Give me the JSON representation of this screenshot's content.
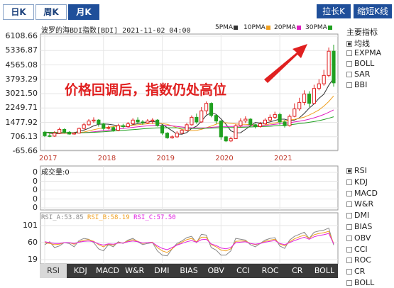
{
  "period_tabs": [
    {
      "label": "日K",
      "active": false
    },
    {
      "label": "周K",
      "active": false
    },
    {
      "label": "月K",
      "active": true
    }
  ],
  "buttons": {
    "stretch": "拉长K线",
    "shrink": "缩短K线"
  },
  "header": {
    "title": "波罗的海BDI指数[BDI] 2021-11-02 04:00"
  },
  "ma_legend": [
    {
      "label": "5PMA",
      "color": "#333333"
    },
    {
      "label": "10PMA",
      "color": "#f0a020"
    },
    {
      "label": "20PMA",
      "color": "#e020c0"
    },
    {
      "label": "30PMA",
      "color": "#20a020"
    }
  ],
  "side_panel": {
    "title": "主要指标",
    "items": [
      {
        "label": "均线",
        "checked": true
      },
      {
        "label": "EXPMA",
        "checked": false
      },
      {
        "label": "BOLL",
        "checked": false
      },
      {
        "label": "SAR",
        "checked": false
      },
      {
        "label": "BBI",
        "checked": false
      }
    ]
  },
  "sub_indicators": [
    {
      "label": "RSI",
      "checked": true
    },
    {
      "label": "KDJ",
      "checked": false
    },
    {
      "label": "MACD",
      "checked": false
    },
    {
      "label": "W&R",
      "checked": false
    },
    {
      "label": "DMI",
      "checked": false
    },
    {
      "label": "BIAS",
      "checked": false
    },
    {
      "label": "OBV",
      "checked": false
    },
    {
      "label": "CCI",
      "checked": false
    },
    {
      "label": "ROC",
      "checked": false
    },
    {
      "label": "CR",
      "checked": false
    },
    {
      "label": "BOLL",
      "checked": false
    }
  ],
  "annotation": "价格回调后，指数仍处高位",
  "volume": {
    "label": "成交量:0",
    "ticks": [
      "0",
      "0",
      "0",
      "0",
      "0"
    ]
  },
  "rsi": {
    "a": "RSI_A:53.85",
    "b": "RSI_B:58.19",
    "c": "RSI_C:57.50",
    "ticks": [
      "101",
      "60",
      "19"
    ]
  },
  "bottom_tabs": [
    {
      "label": "RSI",
      "active": true
    },
    {
      "label": "KDJ",
      "active": false
    },
    {
      "label": "MACD",
      "active": false
    },
    {
      "label": "W&R",
      "active": false
    },
    {
      "label": "DMI",
      "active": false
    },
    {
      "label": "BIAS",
      "active": false
    },
    {
      "label": "OBV",
      "active": false
    },
    {
      "label": "CCI",
      "active": false
    },
    {
      "label": "ROC",
      "active": false
    },
    {
      "label": "CR",
      "active": false
    },
    {
      "label": "BOLL",
      "active": false
    }
  ],
  "colors": {
    "up": "#e02020",
    "down": "#20a020",
    "rsi_a": "#888888",
    "rsi_b": "#f0a020",
    "rsi_c": "#e020e0"
  },
  "chart_data": {
    "type": "candlestick",
    "y_ticks": [
      "6108.66",
      "5336.87",
      "4565.08",
      "3793.29",
      "3021.50",
      "2249.71",
      "1477.92",
      "706.13",
      "-65.66"
    ],
    "ylim": [
      -65.66,
      6108.66
    ],
    "x_ticks": [
      "2017",
      "2018",
      "2019",
      "2020",
      "2021"
    ],
    "x_tick_index": [
      0,
      12,
      24,
      36,
      48
    ],
    "candles": [
      [
        950,
        760,
        1020,
        690
      ],
      [
        760,
        740,
        900,
        680
      ],
      [
        740,
        900,
        1000,
        700
      ],
      [
        900,
        1100,
        1200,
        850
      ],
      [
        1100,
        950,
        1150,
        880
      ],
      [
        950,
        850,
        1000,
        820
      ],
      [
        850,
        900,
        950,
        820
      ],
      [
        900,
        1150,
        1200,
        880
      ],
      [
        1150,
        1350,
        1450,
        1100
      ],
      [
        1350,
        1550,
        1650,
        1300
      ],
      [
        1550,
        1600,
        1750,
        1450
      ],
      [
        1600,
        1400,
        1650,
        1250
      ],
      [
        1400,
        1150,
        1450,
        1050
      ],
      [
        1150,
        1200,
        1300,
        1100
      ],
      [
        1200,
        1050,
        1250,
        980
      ],
      [
        1050,
        1300,
        1400,
        1000
      ],
      [
        1300,
        1250,
        1400,
        1150
      ],
      [
        1250,
        1400,
        1500,
        1200
      ],
      [
        1400,
        1600,
        1700,
        1350
      ],
      [
        1600,
        1500,
        1750,
        1400
      ],
      [
        1500,
        1450,
        1600,
        1350
      ],
      [
        1450,
        1550,
        1650,
        1400
      ],
      [
        1550,
        1600,
        1700,
        1400
      ],
      [
        1600,
        1300,
        1650,
        1250
      ],
      [
        1300,
        900,
        1350,
        800
      ],
      [
        900,
        650,
        950,
        600
      ],
      [
        650,
        700,
        780,
        600
      ],
      [
        700,
        900,
        1000,
        650
      ],
      [
        900,
        1050,
        1100,
        850
      ],
      [
        1050,
        1350,
        1450,
        1000
      ],
      [
        1350,
        1750,
        1850,
        1300
      ],
      [
        1750,
        1500,
        1950,
        1400
      ],
      [
        1500,
        2100,
        2300,
        1450
      ],
      [
        2100,
        2500,
        2600,
        1900
      ],
      [
        2500,
        1850,
        2550,
        1750
      ],
      [
        1850,
        1550,
        1900,
        1400
      ],
      [
        1550,
        700,
        1600,
        550
      ],
      [
        700,
        480,
        750,
        420
      ],
      [
        480,
        600,
        700,
        420
      ],
      [
        600,
        1300,
        1400,
        580
      ],
      [
        1300,
        1550,
        1700,
        1200
      ],
      [
        1550,
        1650,
        1800,
        1450
      ],
      [
        1650,
        1350,
        1700,
        1250
      ],
      [
        1350,
        1250,
        1400,
        1150
      ],
      [
        1250,
        1400,
        1500,
        1200
      ],
      [
        1400,
        1600,
        1700,
        1350
      ],
      [
        1600,
        1750,
        1900,
        1550
      ],
      [
        1750,
        1900,
        2050,
        1650
      ],
      [
        1900,
        1500,
        2000,
        1350
      ],
      [
        1500,
        1300,
        1600,
        1200
      ],
      [
        1300,
        1800,
        1900,
        1250
      ],
      [
        1800,
        2200,
        2500,
        1750
      ],
      [
        2200,
        2550,
        2800,
        2100
      ],
      [
        2550,
        3000,
        3200,
        2400
      ],
      [
        3000,
        2500,
        3150,
        2300
      ],
      [
        2500,
        3300,
        3500,
        2450
      ],
      [
        3300,
        3550,
        3800,
        3200
      ],
      [
        3550,
        4000,
        4300,
        3450
      ],
      [
        4000,
        5300,
        5500,
        3900
      ],
      [
        5300,
        3600,
        5650,
        3400
      ]
    ],
    "ma_series": [
      {
        "name": "5PMA",
        "values": [
          950,
          900,
          870,
          880,
          890,
          910,
          930,
          990,
          1060,
          1160,
          1290,
          1370,
          1390,
          1380,
          1340,
          1300,
          1270,
          1260,
          1360,
          1410,
          1450,
          1500,
          1530,
          1490,
          1370,
          1200,
          1030,
          850,
          840,
          930,
          1150,
          1270,
          1540,
          1850,
          2000,
          1910,
          1670,
          1380,
          1030,
          910,
          920,
          1100,
          1290,
          1470,
          1440,
          1450,
          1500,
          1580,
          1650,
          1650,
          1570,
          1600,
          1720,
          1960,
          2240,
          2470,
          2770,
          2990,
          3470,
          3850
        ]
      },
      {
        "name": "10PMA",
        "values": [
          950,
          930,
          910,
          900,
          890,
          890,
          900,
          930,
          960,
          1020,
          1080,
          1140,
          1180,
          1220,
          1250,
          1270,
          1280,
          1290,
          1320,
          1350,
          1380,
          1400,
          1420,
          1420,
          1410,
          1370,
          1290,
          1190,
          1100,
          1040,
          1030,
          1050,
          1100,
          1190,
          1280,
          1380,
          1450,
          1460,
          1420,
          1390,
          1380,
          1370,
          1350,
          1330,
          1320,
          1340,
          1400,
          1440,
          1510,
          1560,
          1600,
          1640,
          1700,
          1760,
          1870,
          2000,
          2150,
          2350,
          2600,
          2900
        ]
      },
      {
        "name": "20PMA",
        "values": [
          950,
          940,
          930,
          920,
          915,
          910,
          910,
          915,
          925,
          945,
          970,
          1000,
          1030,
          1060,
          1090,
          1120,
          1150,
          1180,
          1210,
          1240,
          1270,
          1290,
          1310,
          1320,
          1320,
          1310,
          1290,
          1260,
          1230,
          1200,
          1190,
          1180,
          1180,
          1190,
          1210,
          1230,
          1250,
          1260,
          1260,
          1260,
          1270,
          1280,
          1290,
          1300,
          1310,
          1320,
          1340,
          1370,
          1400,
          1430,
          1460,
          1500,
          1540,
          1590,
          1650,
          1720,
          1800,
          1900,
          2020,
          2150
        ]
      },
      {
        "name": "30PMA",
        "values": [
          950,
          945,
          940,
          935,
          930,
          925,
          920,
          920,
          925,
          935,
          945,
          960,
          975,
          990,
          1010,
          1030,
          1050,
          1070,
          1090,
          1110,
          1130,
          1150,
          1170,
          1180,
          1190,
          1190,
          1190,
          1180,
          1170,
          1160,
          1150,
          1150,
          1150,
          1160,
          1170,
          1180,
          1190,
          1200,
          1200,
          1200,
          1210,
          1220,
          1230,
          1240,
          1250,
          1260,
          1270,
          1290,
          1310,
          1330,
          1350,
          1380,
          1410,
          1440,
          1480,
          1520,
          1570,
          1630,
          1700,
          1780
        ]
      }
    ],
    "rsi_series": [
      {
        "name": "RSI_A",
        "values": [
          55,
          62,
          48,
          52,
          60,
          58,
          50,
          65,
          70,
          68,
          60,
          45,
          40,
          55,
          50,
          62,
          58,
          66,
          70,
          62,
          55,
          58,
          60,
          40,
          30,
          28,
          45,
          58,
          64,
          72,
          75,
          60,
          80,
          78,
          48,
          42,
          30,
          30,
          40,
          70,
          68,
          66,
          55,
          50,
          58,
          66,
          70,
          72,
          52,
          46,
          66,
          75,
          80,
          85,
          70,
          85,
          88,
          90,
          95,
          54
        ]
      },
      {
        "name": "RSI_B",
        "values": [
          60,
          58,
          55,
          56,
          60,
          60,
          56,
          62,
          66,
          67,
          63,
          55,
          50,
          56,
          54,
          60,
          59,
          64,
          67,
          63,
          58,
          60,
          61,
          48,
          40,
          36,
          45,
          55,
          61,
          67,
          70,
          62,
          73,
          73,
          55,
          50,
          42,
          40,
          45,
          63,
          64,
          64,
          58,
          55,
          58,
          63,
          66,
          68,
          57,
          52,
          62,
          69,
          74,
          78,
          70,
          79,
          82,
          84,
          87,
          58
        ]
      },
      {
        "name": "RSI_C",
        "values": [
          62,
          60,
          58,
          58,
          60,
          60,
          58,
          61,
          63,
          64,
          62,
          57,
          54,
          57,
          56,
          59,
          59,
          62,
          64,
          62,
          59,
          60,
          60,
          52,
          46,
          43,
          48,
          54,
          58,
          62,
          65,
          61,
          67,
          68,
          57,
          53,
          47,
          45,
          48,
          60,
          61,
          62,
          58,
          56,
          58,
          61,
          63,
          65,
          58,
          55,
          60,
          65,
          69,
          73,
          68,
          74,
          77,
          79,
          82,
          57
        ]
      }
    ],
    "rsi_ylim": [
      19,
      101
    ]
  }
}
